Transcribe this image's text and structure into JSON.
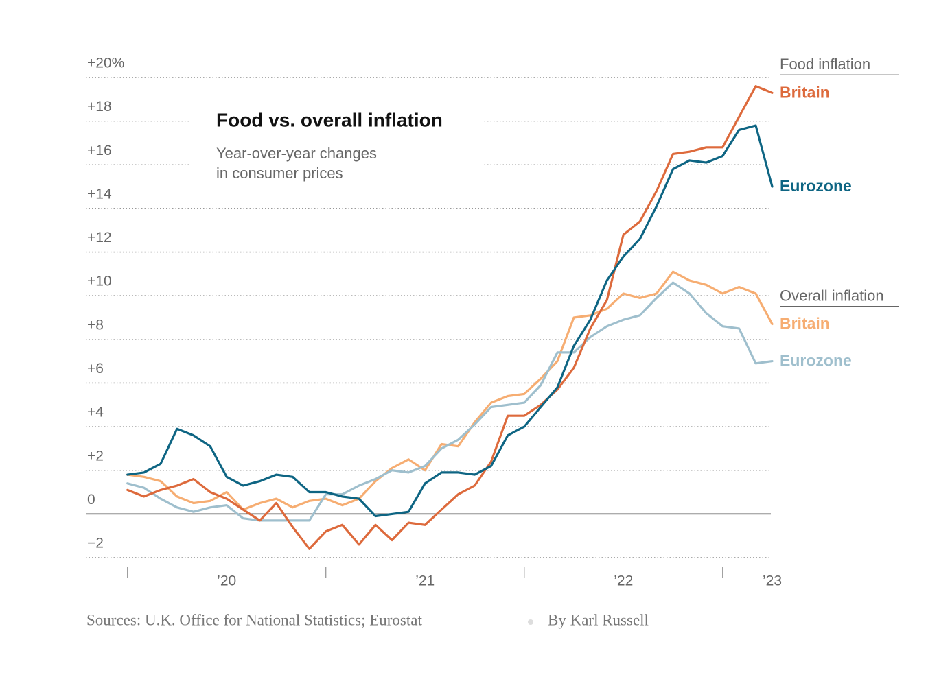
{
  "chart_data": {
    "type": "line",
    "title": "Food vs. overall inflation",
    "subtitle": [
      "Year-over-year changes",
      "in consumer prices"
    ],
    "source": "Sources: U.K. Office for National Statistics; Eurostat",
    "byline": "By Karl Russell",
    "xlim": [
      2019.79,
      2023.25
    ],
    "ylim": [
      -2,
      20
    ],
    "yticks": [
      {
        "value": 20,
        "label": "+20%"
      },
      {
        "value": 18,
        "label": "+18"
      },
      {
        "value": 16,
        "label": "+16"
      },
      {
        "value": 14,
        "label": "+14"
      },
      {
        "value": 12,
        "label": "+12"
      },
      {
        "value": 10,
        "label": "+10"
      },
      {
        "value": 8,
        "label": "+8"
      },
      {
        "value": 6,
        "label": "+6"
      },
      {
        "value": 4,
        "label": "+4"
      },
      {
        "value": 2,
        "label": "+2"
      },
      0,
      {
        "value": -2,
        "label": "−2"
      }
    ],
    "xticks": [
      2020,
      2021,
      2022,
      2023
    ],
    "xtick_labels": [
      {
        "value": 2020.5,
        "label": "’20"
      },
      {
        "value": 2021.5,
        "label": "’21"
      },
      {
        "value": 2022.5,
        "label": "’22"
      },
      {
        "value": 2023.25,
        "label": "’23"
      }
    ],
    "grid": true,
    "x": [
      2020,
      2020.083,
      2020.167,
      2020.25,
      2020.333,
      2020.417,
      2020.5,
      2020.583,
      2020.667,
      2020.75,
      2020.833,
      2020.917,
      2021,
      2021.083,
      2021.167,
      2021.25,
      2021.333,
      2021.417,
      2021.5,
      2021.583,
      2021.667,
      2021.75,
      2021.833,
      2021.917,
      2022,
      2022.083,
      2022.167,
      2022.25,
      2022.333,
      2022.417,
      2022.5,
      2022.583,
      2022.667,
      2022.75,
      2022.833,
      2022.917,
      2023,
      2023.083,
      2023.167,
      2023.25
    ],
    "series_groups": [
      {
        "title": "Food inflation",
        "series": [
          {
            "name": "Britain",
            "color": "#dd6a3c",
            "values": [
              1.1,
              0.8,
              1.1,
              1.3,
              1.6,
              1.0,
              0.7,
              0.2,
              -0.3,
              0.5,
              -0.6,
              -1.6,
              -0.8,
              -0.5,
              -1.4,
              -0.5,
              -1.2,
              -0.4,
              -0.5,
              0.2,
              0.9,
              1.3,
              2.4,
              4.5,
              4.5,
              5.0,
              5.7,
              6.7,
              8.5,
              9.8,
              12.8,
              13.4,
              14.8,
              16.5,
              16.6,
              16.8,
              16.8,
              18.2,
              19.6,
              19.3
            ]
          },
          {
            "name": "Eurozone",
            "color": "#0e6583",
            "values": [
              1.8,
              1.9,
              2.3,
              3.9,
              3.6,
              3.1,
              1.7,
              1.3,
              1.5,
              1.8,
              1.7,
              1.0,
              1.0,
              0.8,
              0.7,
              -0.1,
              0.0,
              0.1,
              1.4,
              1.9,
              1.9,
              1.8,
              2.2,
              3.6,
              4.0,
              4.9,
              5.8,
              7.7,
              8.9,
              10.7,
              11.8,
              12.6,
              14.1,
              15.8,
              16.2,
              16.1,
              16.4,
              17.6,
              17.8,
              15.0
            ]
          }
        ]
      },
      {
        "title": "Overall inflation",
        "series": [
          {
            "name": "Britain",
            "color": "#f6ad72",
            "values": [
              1.8,
              1.7,
              1.5,
              0.8,
              0.5,
              0.6,
              1.0,
              0.2,
              0.5,
              0.7,
              0.3,
              0.6,
              0.7,
              0.4,
              0.7,
              1.5,
              2.1,
              2.5,
              2.0,
              3.2,
              3.1,
              4.2,
              5.1,
              5.4,
              5.5,
              6.2,
              7.0,
              9.0,
              9.1,
              9.4,
              10.1,
              9.9,
              10.1,
              11.1,
              10.7,
              10.5,
              10.1,
              10.4,
              10.1,
              8.7
            ]
          },
          {
            "name": "Eurozone",
            "color": "#9fbfcd",
            "values": [
              1.4,
              1.2,
              0.7,
              0.3,
              0.1,
              0.3,
              0.4,
              -0.2,
              -0.3,
              -0.3,
              -0.3,
              -0.3,
              0.9,
              0.9,
              1.3,
              1.6,
              2.0,
              1.9,
              2.2,
              3.0,
              3.4,
              4.1,
              4.9,
              5.0,
              5.1,
              5.9,
              7.4,
              7.4,
              8.1,
              8.6,
              8.9,
              9.1,
              9.9,
              10.6,
              10.1,
              9.2,
              8.6,
              8.5,
              6.9,
              7.0
            ]
          }
        ]
      }
    ]
  }
}
